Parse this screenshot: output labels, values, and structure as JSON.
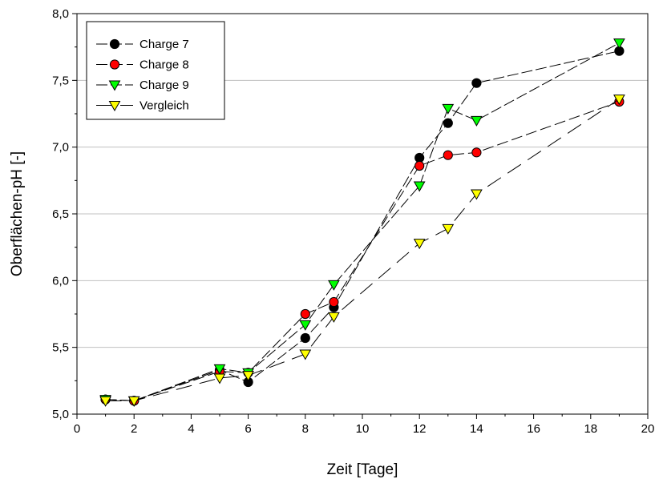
{
  "chart_data": {
    "type": "line",
    "title": "",
    "xlabel": "Zeit [Tage]",
    "ylabel": "Oberflächen-pH [-]",
    "xlim": [
      0,
      20
    ],
    "ylim": [
      5.0,
      8.0
    ],
    "xticks": [
      0,
      2,
      4,
      6,
      8,
      10,
      12,
      14,
      16,
      18,
      20
    ],
    "xtick_labels": [
      "0",
      "2",
      "4",
      "6",
      "8",
      "10",
      "12",
      "14",
      "16",
      "18",
      "20"
    ],
    "yticks": [
      5.0,
      5.5,
      6.0,
      6.5,
      7.0,
      7.5,
      8.0
    ],
    "ytick_labels": [
      "5,0",
      "5,5",
      "6,0",
      "6,5",
      "7,0",
      "7,5",
      "8,0"
    ],
    "grid": "horizontal",
    "legend_position": "top-left",
    "series": [
      {
        "name": "Charge 7",
        "marker": "circle",
        "color": "#000000",
        "x": [
          1,
          2,
          5,
          6,
          8,
          9,
          12,
          13,
          14,
          19
        ],
        "y": [
          5.11,
          5.1,
          5.33,
          5.24,
          5.57,
          5.8,
          6.92,
          7.18,
          7.48,
          7.72
        ]
      },
      {
        "name": "Charge 8",
        "marker": "circle",
        "color": "#ff0000",
        "x": [
          1,
          2,
          5,
          6,
          8,
          9,
          12,
          13,
          14,
          19
        ],
        "y": [
          5.11,
          5.1,
          5.32,
          5.31,
          5.75,
          5.84,
          6.86,
          6.94,
          6.96,
          7.34
        ]
      },
      {
        "name": "Charge 9",
        "marker": "triangle-down",
        "color": "#00ff00",
        "x": [
          1,
          2,
          5,
          6,
          8,
          9,
          12,
          13,
          14,
          19
        ],
        "y": [
          5.11,
          5.1,
          5.34,
          5.31,
          5.67,
          5.97,
          6.71,
          7.29,
          7.2,
          7.78
        ]
      },
      {
        "name": "Vergleich",
        "marker": "triangle-down",
        "color": "#ffff00",
        "x": [
          1,
          2,
          5,
          6,
          8,
          9,
          12,
          13,
          14,
          19
        ],
        "y": [
          5.1,
          5.1,
          5.27,
          5.29,
          5.45,
          5.73,
          6.28,
          6.39,
          6.65,
          7.36
        ]
      }
    ]
  }
}
